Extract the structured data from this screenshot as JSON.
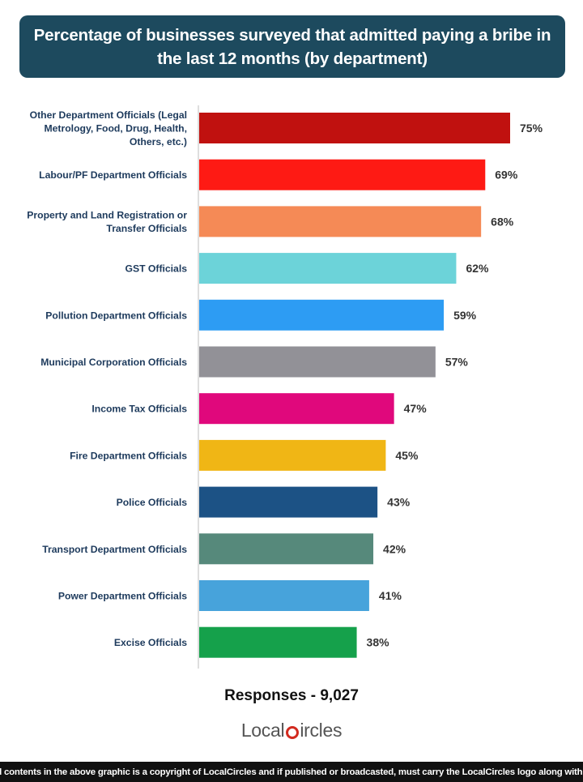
{
  "title": "Percentage of businesses surveyed that admitted paying a bribe in the last 12 months (by department)",
  "chart_data": {
    "type": "bar",
    "orientation": "horizontal",
    "categories": [
      [
        "Other Department Officials (Legal",
        "Metrology, Food, Drug, Health,",
        "Others, etc.)"
      ],
      [
        "Labour/PF Department Officials"
      ],
      [
        "Property and Land Registration or",
        "Transfer Officials"
      ],
      [
        "GST Officials"
      ],
      [
        "Pollution Department Officials"
      ],
      [
        "Municipal Corporation Officials"
      ],
      [
        "Income Tax Officials"
      ],
      [
        "Fire Department Officials"
      ],
      [
        "Police Officials"
      ],
      [
        "Transport Department Officials"
      ],
      [
        "Power Department Officials"
      ],
      [
        "Excise Officials"
      ]
    ],
    "values": [
      75,
      69,
      68,
      62,
      59,
      57,
      47,
      45,
      43,
      42,
      41,
      38
    ],
    "value_labels": [
      "75%",
      "69%",
      "68%",
      "62%",
      "59%",
      "57%",
      "47%",
      "45%",
      "43%",
      "42%",
      "41%",
      "38%"
    ],
    "colors": [
      "#c0110f",
      "#fe1a14",
      "#f58a56",
      "#6cd3d9",
      "#2d9cf3",
      "#929197",
      "#e0087c",
      "#f0b615",
      "#1c5285",
      "#56897b",
      "#47a3db",
      "#15a14b"
    ],
    "xlim": [
      0,
      80
    ],
    "grid": false,
    "legend": "none"
  },
  "responses": "Responses - 9,027",
  "logo": {
    "local": "Local",
    "c": "C",
    "rest": "ircles"
  },
  "footer": "All contents in the above graphic is a copyright of LocalCircles and if published or broadcasted, must carry the LocalCircles logo along with it."
}
